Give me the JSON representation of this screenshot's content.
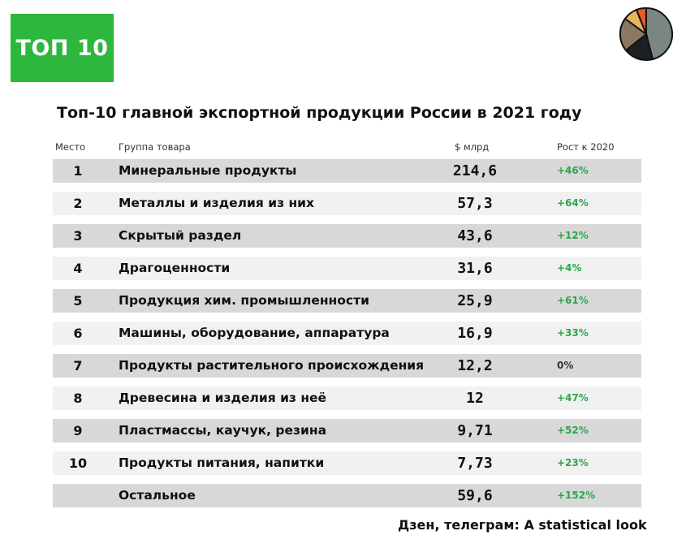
{
  "badge": "ТОП 10",
  "colors": {
    "badge": "#2db83d",
    "growth_positive": "#2aa84a",
    "growth_zero": "#333333",
    "row_dark": "#d8d8d8",
    "row_light": "#f1f1f1"
  },
  "chart_data": {
    "type": "table",
    "title": "Топ-10 главной экспортной продукции России в 2021 году",
    "columns": [
      "Место",
      "Группа товара",
      "$ млрд",
      "Рост к 2020"
    ],
    "rows": [
      {
        "rank": "1",
        "name": "Минеральные продукты",
        "value": "214,6",
        "growth": "+46%"
      },
      {
        "rank": "2",
        "name": "Металлы и изделия из них",
        "value": "57,3",
        "growth": "+64%"
      },
      {
        "rank": "3",
        "name": "Скрытый раздел",
        "value": "43,6",
        "growth": "+12%"
      },
      {
        "rank": "4",
        "name": "Драгоценности",
        "value": "31,6",
        "growth": "+4%"
      },
      {
        "rank": "5",
        "name": "Продукция хим. промышленности",
        "value": "25,9",
        "growth": "+61%"
      },
      {
        "rank": "6",
        "name": "Машины, оборудование, аппаратура",
        "value": "16,9",
        "growth": "+33%"
      },
      {
        "rank": "7",
        "name": "Продукты растительного происхождения",
        "value": "12,2",
        "growth": "0%"
      },
      {
        "rank": "8",
        "name": "Древесина и изделия из неё",
        "value": "12",
        "growth": "+47%"
      },
      {
        "rank": "9",
        "name": "Пластмассы, каучук, резина",
        "value": "9,71",
        "growth": "+52%"
      },
      {
        "rank": "10",
        "name": "Продукты питания, напитки",
        "value": "7,73",
        "growth": "+23%"
      },
      {
        "rank": "",
        "name": "Остальное",
        "value": "59,6",
        "growth": "+152%"
      }
    ]
  },
  "footer": "Дзен, телеграм: A statistical look"
}
